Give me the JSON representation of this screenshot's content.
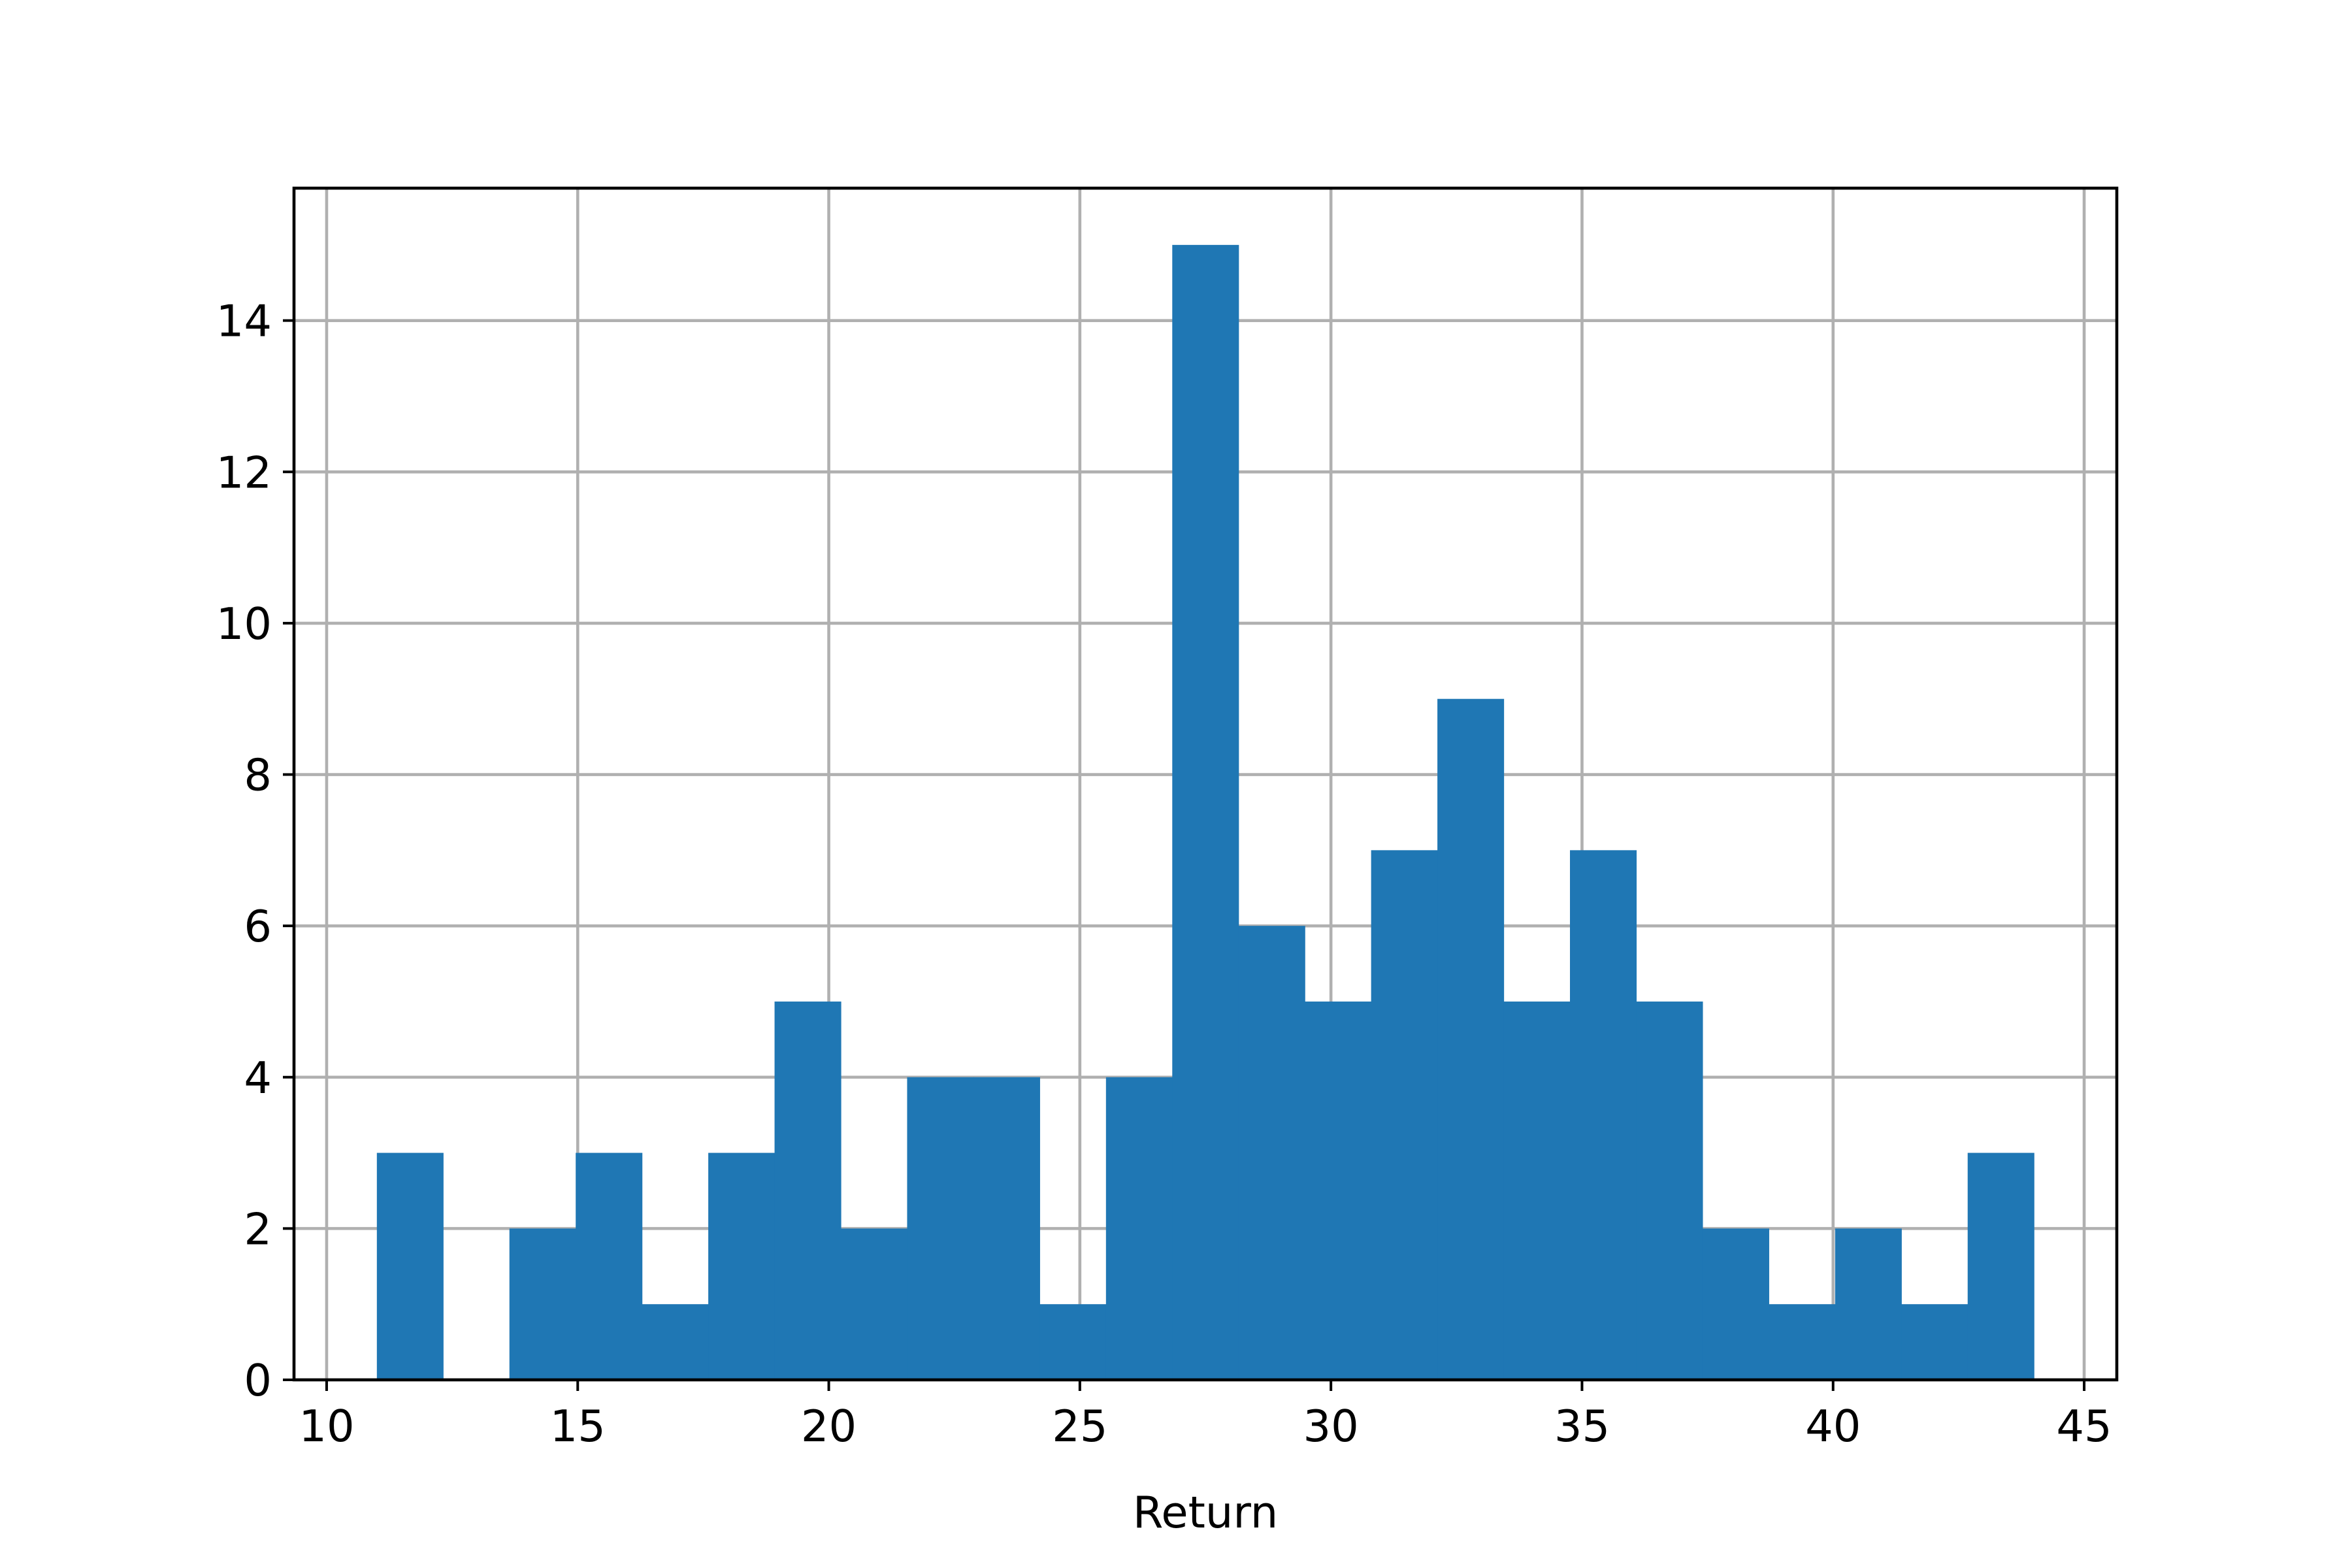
{
  "chart_data": {
    "type": "histogram",
    "title": "",
    "xlabel": "Return",
    "ylabel": "",
    "bar_color": "#1f77b4",
    "grid": true,
    "xlim": [
      9.35,
      45.65
    ],
    "ylim": [
      0,
      15.75
    ],
    "xticks": [
      10,
      15,
      20,
      25,
      30,
      35,
      40,
      45
    ],
    "yticks": [
      0,
      2,
      4,
      6,
      8,
      10,
      12,
      14
    ],
    "bin_start": 11.0,
    "bin_width": 1.32,
    "counts": [
      3,
      0,
      2,
      3,
      1,
      3,
      5,
      2,
      4,
      4,
      1,
      4,
      15,
      6,
      5,
      7,
      9,
      5,
      7,
      5,
      2,
      1,
      2,
      1,
      3
    ]
  }
}
